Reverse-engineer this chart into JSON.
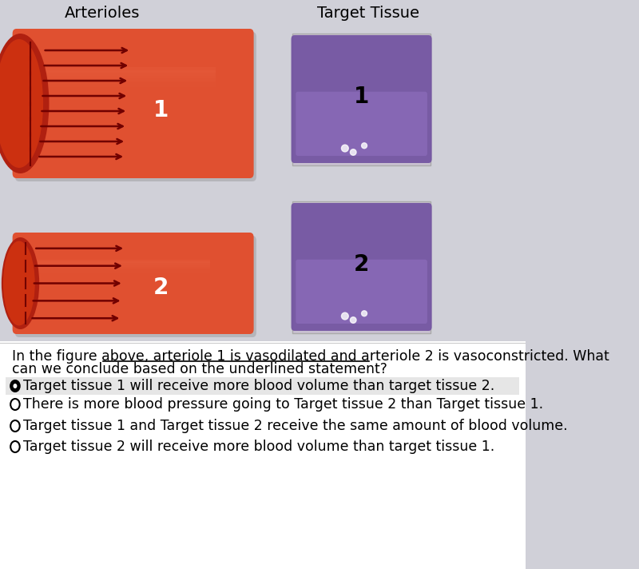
{
  "bg_color": "#d0d0d8",
  "arterioles_label": "Arterioles",
  "target_tissue_label": "Target Tissue",
  "arteriole1_label": "1",
  "arteriole2_label": "2",
  "tissue1_label": "1",
  "tissue2_label": "2",
  "question_line1": "In the figure above, arteriole 1 is vasodilated and arteriole 2 is vasoconstricted. What",
  "question_line2": "can we conclude based on the underlined statement?",
  "underline_prefix": "In the figure above, ",
  "underline_text": "arteriole 1 is vasodilated and arteriole 2 is vasoconstricted",
  "options": [
    "Target tissue 1 will receive more blood volume than target tissue 2.",
    "There is more blood pressure going to Target tissue 2 than Target tissue 1.",
    "Target tissue 1 and Target tissue 2 receive the same amount of blood volume.",
    "Target tissue 2 will receive more blood volume than target tissue 1."
  ],
  "selected_option": 0
}
